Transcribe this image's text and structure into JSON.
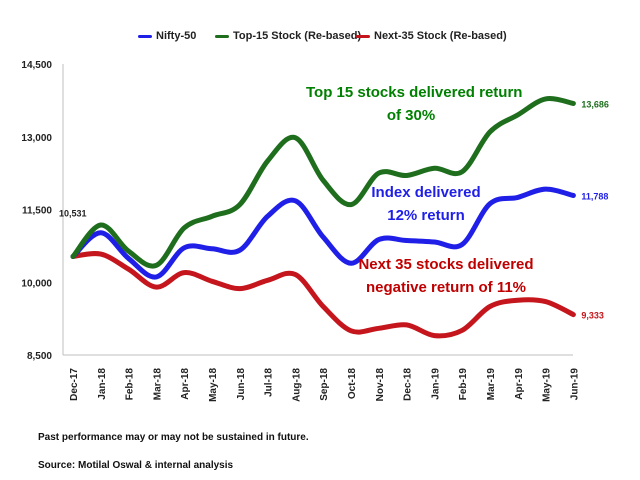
{
  "colors": {
    "nifty": "#1f1fe8",
    "top15": "#1e6e1e",
    "next35": "#c4161c",
    "annot_green": "#008000",
    "annot_blue": "#1f1fe8",
    "annot_red": "#c00000"
  },
  "chart_data": {
    "type": "line",
    "title": "",
    "xlabel": "",
    "ylabel": "",
    "ylim": [
      8500,
      14500
    ],
    "yticks": [
      8500,
      10000,
      11500,
      13000,
      14500
    ],
    "ytick_labels": [
      "8,500",
      "10,000",
      "11,500",
      "13,000",
      "14,500"
    ],
    "categories": [
      "Dec-17",
      "Jan-18",
      "Feb-18",
      "Mar-18",
      "Apr-18",
      "May-18",
      "Jun-18",
      "Jul-18",
      "Aug-18",
      "Sep-18",
      "Oct-18",
      "Nov-18",
      "Dec-18",
      "Jan-19",
      "Feb-19",
      "Mar-19",
      "Apr-19",
      "May-19",
      "Jun-19"
    ],
    "legend_position": "top",
    "grid": false,
    "series": [
      {
        "name": "Nifty-50",
        "color_key": "nifty",
        "values": [
          10531,
          11020,
          10490,
          10110,
          10710,
          10690,
          10660,
          11360,
          11680,
          10930,
          10390,
          10880,
          10860,
          10830,
          10780,
          11620,
          11750,
          11920,
          11788
        ]
      },
      {
        "name": "Top-15 Stock (Re-based)",
        "color_key": "top15",
        "values": [
          10531,
          11180,
          10640,
          10350,
          11120,
          11360,
          11600,
          12500,
          12980,
          12100,
          11600,
          12250,
          12200,
          12350,
          12280,
          13100,
          13450,
          13780,
          13686
        ]
      },
      {
        "name": "Next-35 Stock (Re-based)",
        "color_key": "next35",
        "values": [
          10531,
          10580,
          10270,
          9900,
          10200,
          10020,
          9870,
          10040,
          10160,
          9500,
          9000,
          9050,
          9120,
          8900,
          9010,
          9500,
          9630,
          9600,
          9333
        ]
      }
    ],
    "end_labels": [
      "11,788",
      "13,686",
      "9,333"
    ],
    "start_label": "10,531"
  },
  "annotations": {
    "top15_line1": "Top 15 stocks delivered return",
    "top15_line2": "of 30%",
    "nifty_line1": "Index delivered",
    "nifty_line2": "12% return",
    "next35_line1": "Next 35 stocks delivered",
    "next35_line2": "negative return of 11%"
  },
  "footnotes": {
    "disclaimer": "Past performance may or may not be sustained in future.",
    "source": "Source: Motilal Oswal & internal analysis"
  }
}
